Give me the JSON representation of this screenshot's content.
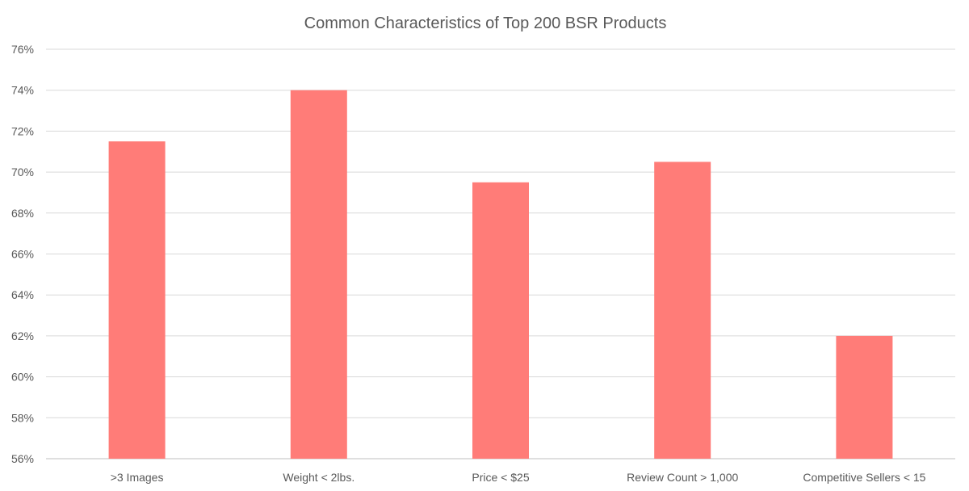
{
  "chart_data": {
    "type": "bar",
    "title": "Common Characteristics of Top 200 BSR Products",
    "xlabel": "",
    "ylabel": "",
    "categories": [
      ">3 Images",
      "Weight < 2lbs.",
      "Price < $25",
      "Review Count > 1,000",
      "Competitive Sellers < 15"
    ],
    "values": [
      71.5,
      74,
      69.5,
      70.5,
      62
    ],
    "ylim": [
      56,
      76
    ],
    "yticks": [
      56,
      58,
      60,
      62,
      64,
      66,
      68,
      70,
      72,
      74,
      76
    ],
    "ytick_labels": [
      "56%",
      "58%",
      "60%",
      "62%",
      "64%",
      "66%",
      "68%",
      "70%",
      "72%",
      "74%",
      "76%"
    ],
    "grid": true,
    "bar_color": "#ff7c78",
    "legend": "none"
  }
}
